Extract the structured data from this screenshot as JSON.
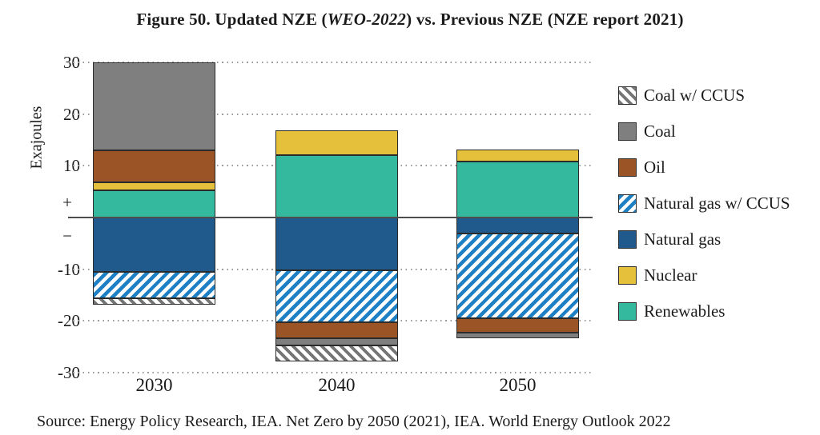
{
  "title": {
    "prefix": "Figure 50. Updated NZE (",
    "italic": "WEO-2022",
    "suffix": ") vs. Previous NZE (NZE report 2021)"
  },
  "source": "Source: Energy Policy Research, IEA. Net Zero by 2050 (2021), IEA. World Energy Outlook 2022",
  "chart_data": {
    "type": "bar",
    "stacked": true,
    "title": "Figure 50. Updated NZE (WEO-2022) vs. Previous NZE (NZE report 2021)",
    "ylabel": "Exajoules",
    "unit": "EJ",
    "ylim": [
      -30,
      31
    ],
    "grid": "dotted horizontal",
    "legend_position": "right",
    "categories": [
      "2030",
      "2040",
      "2050"
    ],
    "yticks": [
      {
        "label": "30",
        "value": 30,
        "grid": true
      },
      {
        "label": "20",
        "value": 20,
        "grid": true
      },
      {
        "label": "10",
        "value": 10,
        "grid": true
      },
      {
        "label": "+",
        "value": 2.9,
        "grid": false
      },
      {
        "label": "−",
        "value": -3.6,
        "grid": false
      },
      {
        "label": "-10",
        "value": -10,
        "grid": true
      },
      {
        "label": "-20",
        "value": -20,
        "grid": true
      },
      {
        "label": "-30",
        "value": -30,
        "grid": true
      }
    ],
    "series": [
      {
        "key": "coal_ccus",
        "name": "Coal w/ CCUS",
        "color": "#757575",
        "pattern": "hatch-gray",
        "values": [
          -1.2,
          -3.0,
          0
        ]
      },
      {
        "key": "coal",
        "name": "Coal",
        "color": "#7F7F7F",
        "pattern": null,
        "values": [
          17.0,
          -1.4,
          -1.1
        ]
      },
      {
        "key": "oil",
        "name": "Oil",
        "color": "#9A5425",
        "pattern": null,
        "values": [
          6.2,
          -3.2,
          -2.8
        ]
      },
      {
        "key": "natural_gas_ccus",
        "name": "Natural gas w/ CCUS",
        "color": "#1E80C4",
        "pattern": "hatch-blue",
        "values": [
          -5.1,
          -10.0,
          -16.3
        ]
      },
      {
        "key": "natural_gas",
        "name": "Natural gas",
        "color": "#20598C",
        "pattern": null,
        "values": [
          -10.5,
          -10.2,
          -3.1
        ]
      },
      {
        "key": "nuclear",
        "name": "Nuclear",
        "color": "#E5C03A",
        "pattern": null,
        "values": [
          1.5,
          4.8,
          2.3
        ]
      },
      {
        "key": "renewables",
        "name": "Renewables",
        "color": "#35B99E",
        "pattern": null,
        "values": [
          5.3,
          12.0,
          10.8
        ]
      }
    ],
    "stack_order_positive": [
      "renewables",
      "nuclear",
      "oil",
      "coal"
    ],
    "stack_order_negative": [
      "natural_gas",
      "natural_gas_ccus",
      "oil",
      "coal",
      "coal_ccus"
    ]
  }
}
